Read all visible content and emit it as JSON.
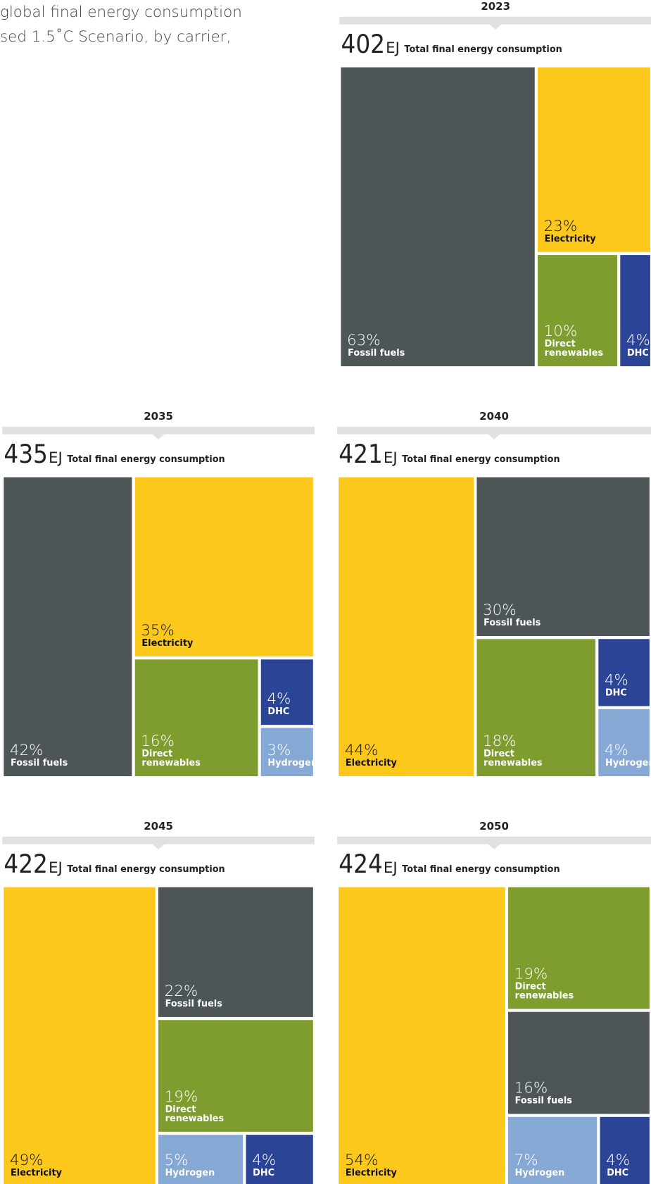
{
  "header": {
    "title_lines": [
      "global final energy consumption",
      "sed 1.5˚C Scenario, by carrier,"
    ]
  },
  "chart_data": [
    {
      "type": "treemap",
      "year": "2023",
      "total": 402,
      "unit": "EJ",
      "total_label": "Total final energy consumption",
      "categories": [
        "Fossil fuels",
        "Electricity",
        "Direct renewables",
        "DHC"
      ],
      "values": [
        63,
        23,
        10,
        4
      ],
      "value_labels": [
        "63%",
        "23%",
        "10%",
        "4%"
      ],
      "colors": [
        "#4d5557",
        "#fcc81b",
        "#7f9c2e",
        "#2c4496"
      ]
    },
    {
      "type": "treemap",
      "year": "2035",
      "total": 435,
      "unit": "EJ",
      "total_label": "Total final energy consumption",
      "categories": [
        "Fossil fuels",
        "Electricity",
        "Direct renewables",
        "DHC",
        "Hydrogen"
      ],
      "values": [
        42,
        35,
        16,
        4,
        3
      ],
      "value_labels": [
        "42%",
        "35%",
        "16%",
        "4%",
        "3%"
      ],
      "colors": [
        "#4d5557",
        "#fcc81b",
        "#7f9c2e",
        "#2c4496",
        "#86a8d4"
      ]
    },
    {
      "type": "treemap",
      "year": "2040",
      "total": 421,
      "unit": "EJ",
      "total_label": "Total final energy consumption",
      "categories": [
        "Electricity",
        "Fossil fuels",
        "Direct renewables",
        "DHC",
        "Hydrogen"
      ],
      "values": [
        44,
        30,
        18,
        4,
        4
      ],
      "value_labels": [
        "44%",
        "30%",
        "18%",
        "4%",
        "4%"
      ],
      "colors": [
        "#fcc81b",
        "#4d5557",
        "#7f9c2e",
        "#2c4496",
        "#86a8d4"
      ]
    },
    {
      "type": "treemap",
      "year": "2045",
      "total": 422,
      "unit": "EJ",
      "total_label": "Total final energy consumption",
      "categories": [
        "Electricity",
        "Fossil fuels",
        "Direct renewables",
        "Hydrogen",
        "DHC"
      ],
      "values": [
        49,
        22,
        19,
        5,
        4
      ],
      "value_labels": [
        "49%",
        "22%",
        "19%",
        "5%",
        "4%"
      ],
      "colors": [
        "#fcc81b",
        "#4d5557",
        "#7f9c2e",
        "#86a8d4",
        "#2c4496"
      ]
    },
    {
      "type": "treemap",
      "year": "2050",
      "total": 424,
      "unit": "EJ",
      "total_label": "Total final energy consumption",
      "categories": [
        "Electricity",
        "Direct renewables",
        "Fossil fuels",
        "Hydrogen",
        "DHC"
      ],
      "values": [
        54,
        19,
        16,
        7,
        4
      ],
      "value_labels": [
        "54%",
        "19%",
        "16%",
        "7%",
        "4%"
      ],
      "colors": [
        "#fcc81b",
        "#7f9c2e",
        "#4d5557",
        "#86a8d4",
        "#2c4496"
      ]
    }
  ]
}
